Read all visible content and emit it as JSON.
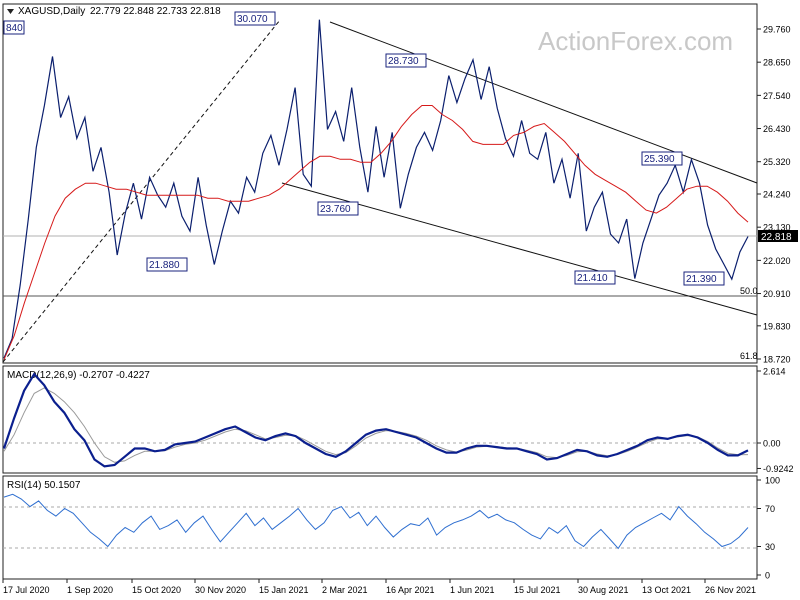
{
  "chart_data": {
    "type": "line",
    "symbol": "XAGUSD,Daily",
    "ohlc": "22.779 22.848 22.733 22.818",
    "watermark": "ActionForex.com",
    "price_axis": {
      "ticks": [
        "29.760",
        "28.650",
        "27.540",
        "26.430",
        "25.320",
        "24.240",
        "23.130",
        "22.020",
        "20.910",
        "19.830",
        "18.720"
      ]
    },
    "x_axis": {
      "ticks": [
        "17 Jul 2020",
        "1 Sep 2020",
        "15 Oct 2020",
        "30 Nov 2020",
        "15 Jan 2021",
        "2 Mar 2021",
        "16 Apr 2021",
        "1 Jun 2021",
        "15 Jul 2021",
        "30 Aug 2021",
        "13 Oct 2021",
        "26 Nov 2021"
      ]
    },
    "price_series": {
      "name": "XAGUSD",
      "values": [
        18.75,
        19.4,
        21.2,
        23.4,
        25.8,
        27.2,
        28.84,
        26.8,
        27.5,
        26.1,
        26.8,
        25.0,
        25.8,
        24.3,
        22.2,
        23.6,
        24.6,
        23.4,
        24.8,
        24.2,
        23.8,
        24.6,
        23.5,
        23.0,
        24.8,
        23.2,
        21.88,
        23.0,
        24.0,
        23.6,
        24.8,
        24.3,
        25.6,
        26.2,
        25.2,
        26.4,
        27.8,
        24.9,
        24.5,
        30.07,
        26.4,
        27.0,
        26.0,
        27.8,
        25.8,
        24.3,
        26.5,
        24.8,
        26.3,
        23.76,
        24.9,
        25.8,
        26.3,
        25.7,
        26.7,
        28.2,
        27.3,
        28.1,
        28.73,
        27.4,
        28.5,
        27.1,
        26.1,
        25.5,
        26.7,
        25.6,
        25.4,
        26.3,
        24.6,
        25.4,
        24.1,
        25.6,
        23.0,
        23.8,
        24.3,
        22.9,
        22.6,
        23.4,
        21.41,
        22.6,
        23.4,
        24.2,
        24.6,
        25.2,
        24.3,
        25.39,
        24.6,
        23.2,
        22.4,
        21.9,
        21.39,
        22.3,
        22.818
      ]
    },
    "ma_series": {
      "values": [
        18.7,
        19.5,
        20.6,
        21.6,
        22.6,
        23.5,
        24.1,
        24.4,
        24.6,
        24.6,
        24.5,
        24.4,
        24.4,
        24.3,
        24.2,
        24.2,
        24.2,
        24.2,
        24.2,
        24.2,
        24.1,
        24.1,
        24.0,
        24.0,
        24.0,
        24.1,
        24.2,
        24.4,
        24.7,
        25.0,
        25.3,
        25.5,
        25.5,
        25.4,
        25.4,
        25.3,
        25.3,
        25.6,
        26.0,
        26.5,
        26.9,
        27.2,
        27.2,
        26.9,
        26.7,
        26.4,
        26.0,
        25.9,
        25.9,
        25.9,
        26.2,
        26.3,
        26.5,
        26.6,
        26.3,
        26.0,
        25.6,
        25.2,
        24.9,
        24.7,
        24.5,
        24.3,
        24.0,
        23.7,
        23.6,
        23.8,
        24.1,
        24.4,
        24.5,
        24.5,
        24.3,
        24.0,
        23.6,
        23.3
      ]
    },
    "levels": [
      {
        "label": "50.0",
        "value": 20.98
      },
      {
        "label": "61.8",
        "value": 18.72
      }
    ],
    "current_price": "22.818",
    "annotations": [
      "840",
      "30.070",
      "28.730",
      "23.760",
      "21.880",
      "25.390",
      "21.410",
      "21.390"
    ],
    "macd": {
      "title": "MACD(12,26,9) -0.2707 -0.4227",
      "axis_ticks": [
        "2.614",
        "0.00",
        "-0.9242"
      ],
      "macd_values": [
        -0.2,
        0.9,
        1.9,
        2.5,
        2.1,
        1.5,
        1.1,
        0.5,
        0.1,
        -0.6,
        -0.85,
        -0.8,
        -0.5,
        -0.2,
        -0.2,
        -0.3,
        -0.25,
        -0.05,
        0.0,
        0.05,
        0.2,
        0.35,
        0.5,
        0.6,
        0.4,
        0.2,
        0.1,
        0.25,
        0.35,
        0.25,
        0.0,
        -0.2,
        -0.4,
        -0.5,
        -0.3,
        0.0,
        0.3,
        0.45,
        0.5,
        0.4,
        0.3,
        0.2,
        0.0,
        -0.2,
        -0.35,
        -0.35,
        -0.2,
        -0.1,
        -0.1,
        -0.15,
        -0.2,
        -0.2,
        -0.3,
        -0.4,
        -0.6,
        -0.55,
        -0.4,
        -0.25,
        -0.3,
        -0.45,
        -0.5,
        -0.4,
        -0.25,
        -0.1,
        0.1,
        0.2,
        0.15,
        0.25,
        0.3,
        0.2,
        0.0,
        -0.25,
        -0.45,
        -0.45,
        -0.27
      ],
      "signal_values": [
        -0.3,
        0.3,
        1.1,
        1.8,
        2.0,
        1.8,
        1.5,
        1.1,
        0.6,
        0.0,
        -0.5,
        -0.7,
        -0.65,
        -0.45,
        -0.3,
        -0.3,
        -0.28,
        -0.15,
        -0.05,
        0.0,
        0.1,
        0.25,
        0.4,
        0.5,
        0.45,
        0.3,
        0.15,
        0.2,
        0.28,
        0.27,
        0.1,
        -0.1,
        -0.3,
        -0.42,
        -0.35,
        -0.1,
        0.18,
        0.35,
        0.45,
        0.42,
        0.35,
        0.25,
        0.1,
        -0.1,
        -0.25,
        -0.33,
        -0.26,
        -0.15,
        -0.12,
        -0.13,
        -0.17,
        -0.19,
        -0.26,
        -0.35,
        -0.5,
        -0.53,
        -0.45,
        -0.32,
        -0.3,
        -0.4,
        -0.46,
        -0.42,
        -0.3,
        -0.15,
        0.02,
        0.15,
        0.15,
        0.22,
        0.27,
        0.22,
        0.05,
        -0.18,
        -0.37,
        -0.43,
        -0.42
      ]
    },
    "rsi": {
      "title": "RSI(14) 50.1507",
      "axis_ticks": [
        "100",
        "70",
        "30",
        "0"
      ],
      "levels": [
        70,
        30
      ],
      "values": [
        82,
        85,
        80,
        72,
        78,
        68,
        62,
        70,
        65,
        55,
        45,
        38,
        30,
        42,
        50,
        45,
        55,
        62,
        48,
        52,
        58,
        45,
        55,
        62,
        48,
        35,
        45,
        55,
        65,
        52,
        60,
        48,
        55,
        62,
        70,
        58,
        48,
        55,
        68,
        72,
        60,
        66,
        52,
        62,
        50,
        40,
        48,
        54,
        52,
        60,
        42,
        50,
        55,
        58,
        62,
        68,
        60,
        64,
        58,
        55,
        48,
        42,
        38,
        50,
        44,
        52,
        36,
        30,
        40,
        48,
        38,
        28,
        42,
        50,
        55,
        60,
        65,
        58,
        72,
        62,
        54,
        45,
        38,
        30,
        33,
        40,
        50
      ]
    }
  }
}
